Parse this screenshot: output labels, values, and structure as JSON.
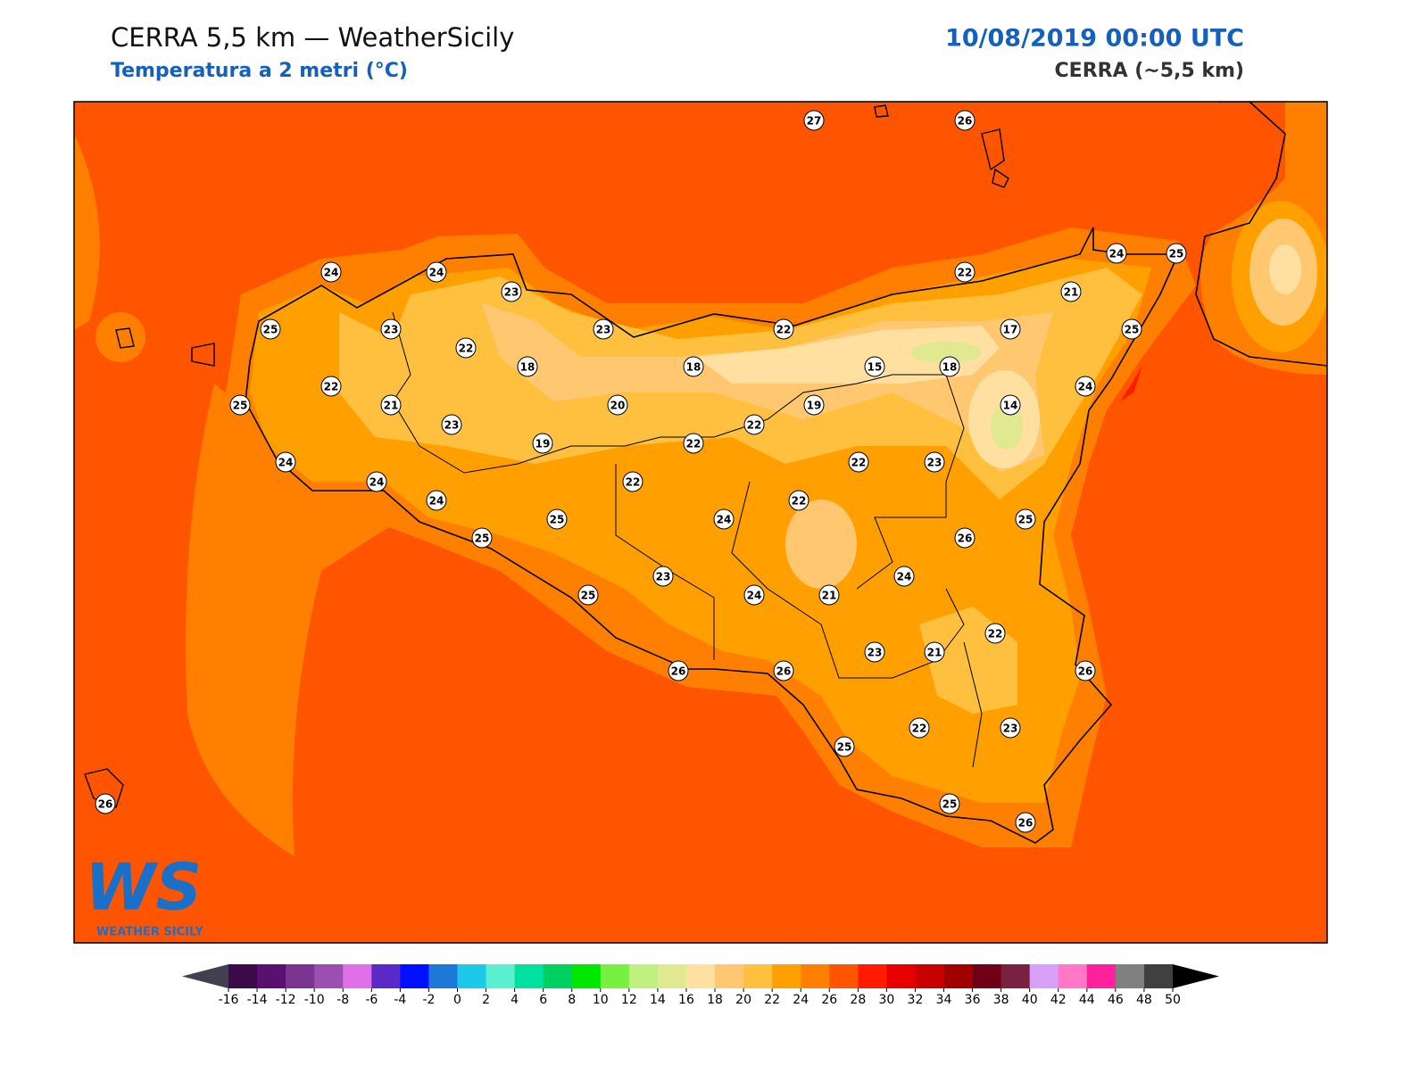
{
  "header": {
    "title": "CERRA 5,5 km — WeatherSicily",
    "subtitle": "Temperatura a 2 metri (°C)",
    "datetime": "10/08/2019 00:00 UTC",
    "model": "CERRA (~5,5 km)"
  },
  "logo": {
    "mark": "WS",
    "name": "WEATHER SICILY"
  },
  "stations": [
    27,
    26,
    24,
    24,
    23,
    22,
    24,
    25,
    21,
    25,
    23,
    23,
    22,
    17,
    25,
    22,
    18,
    18,
    15,
    18,
    22,
    24,
    25,
    21,
    20,
    19,
    14,
    23,
    22,
    19,
    22,
    24,
    22,
    23,
    24,
    22,
    24,
    22,
    25,
    24,
    25,
    25,
    26,
    23,
    24,
    25,
    24,
    21,
    22,
    23,
    21,
    26,
    26,
    26,
    22,
    23,
    25,
    26,
    25,
    26
  ],
  "colorbar": {
    "ticks": [
      -16,
      -14,
      -12,
      -10,
      -8,
      -6,
      -4,
      -2,
      0,
      2,
      4,
      6,
      8,
      10,
      12,
      14,
      16,
      18,
      20,
      22,
      24,
      26,
      28,
      30,
      32,
      34,
      36,
      38,
      40,
      42,
      44,
      46,
      48,
      50
    ],
    "colors": [
      "#3a0a4a",
      "#5a1070",
      "#7a3590",
      "#9b4fb0",
      "#e070e8",
      "#5a2ac8",
      "#0010ff",
      "#1e78d8",
      "#1ec8e8",
      "#5af0d0",
      "#00e0a0",
      "#00d060",
      "#00e800",
      "#78f040",
      "#c0f080",
      "#e0e890",
      "#ffe0a0",
      "#ffc870",
      "#ffc040",
      "#ffa000",
      "#ff8000",
      "#ff5500",
      "#ff1a00",
      "#e80000",
      "#c80000",
      "#a00000",
      "#700018",
      "#7a2040",
      "#d8a0f8",
      "#ff78c8",
      "#ff20a0",
      "#808080",
      "#404040"
    ],
    "extend_colors": [
      "#404050",
      "#000000"
    ]
  }
}
